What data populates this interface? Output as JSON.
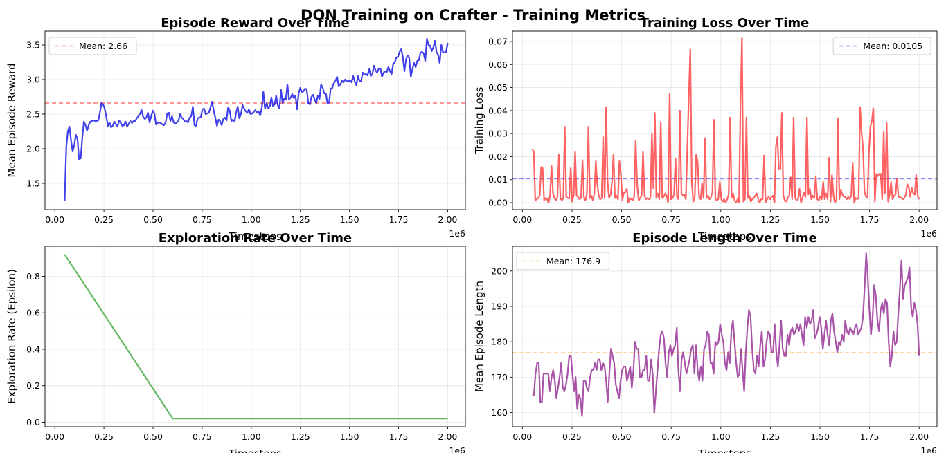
{
  "figure": {
    "suptitle": "DQN Training on Crafter - Training Metrics"
  },
  "chart_data": [
    {
      "id": "reward",
      "type": "line",
      "title": "Episode Reward Over Time",
      "xlabel": "Timesteps",
      "ylabel": "Mean Episode Reward",
      "x_multiplier_label": "1e6",
      "xlim": [
        -0.05,
        2.09
      ],
      "ylim": [
        1.12,
        3.7
      ],
      "xticks": [
        0,
        0.25,
        0.5,
        0.75,
        1.0,
        1.25,
        1.5,
        1.75,
        2.0
      ],
      "xtick_labels": [
        "0.00",
        "0.25",
        "0.50",
        "0.75",
        "1.00",
        "1.25",
        "1.50",
        "1.75",
        "2.00"
      ],
      "yticks": [
        1.5,
        2.0,
        2.5,
        3.0,
        3.5
      ],
      "ytick_labels": [
        "1.5",
        "2.0",
        "2.5",
        "3.0",
        "3.5"
      ],
      "grid": true,
      "legend_position": "top-left",
      "series": [
        {
          "color": "#0000e6",
          "x_start": 0.05,
          "x_end": 2.0,
          "values": [
            1.24,
            2.02,
            2.25,
            2.32,
            2.12,
            1.96,
            2.05,
            2.2,
            2.14,
            1.85,
            1.86,
            2.15,
            2.39,
            2.34,
            2.26,
            2.34,
            2.39,
            2.4,
            2.41,
            2.4,
            2.4,
            2.41,
            2.52,
            2.66,
            2.64,
            2.58,
            2.46,
            2.33,
            2.38,
            2.31,
            2.33,
            2.39,
            2.35,
            2.32,
            2.41,
            2.37,
            2.33,
            2.34,
            2.39,
            2.32,
            2.36,
            2.4,
            2.37,
            2.4,
            2.4,
            2.44,
            2.47,
            2.5,
            2.56,
            2.46,
            2.43,
            2.45,
            2.52,
            2.38,
            2.47,
            2.55,
            2.51,
            2.35,
            2.37,
            2.38,
            2.37,
            2.35,
            2.34,
            2.38,
            2.51,
            2.52,
            2.4,
            2.47,
            2.38,
            2.36,
            2.38,
            2.4,
            2.5,
            2.45,
            2.43,
            2.39,
            2.4,
            2.38,
            2.45,
            2.47,
            2.61,
            2.34,
            2.33,
            2.44,
            2.45,
            2.46,
            2.57,
            2.58,
            2.5,
            2.51,
            2.52,
            2.6,
            2.68,
            2.55,
            2.45,
            2.33,
            2.42,
            2.4,
            2.34,
            2.43,
            2.45,
            2.41,
            2.6,
            2.55,
            2.4,
            2.42,
            2.39,
            2.52,
            2.61,
            2.44,
            2.5,
            2.63,
            2.58,
            2.54,
            2.52,
            2.57,
            2.5,
            2.51,
            2.53,
            2.56,
            2.52,
            2.54,
            2.48,
            2.59,
            2.82,
            2.58,
            2.66,
            2.58,
            2.61,
            2.74,
            2.62,
            2.64,
            2.77,
            2.63,
            2.58,
            2.85,
            2.66,
            2.73,
            2.71,
            2.93,
            2.71,
            2.74,
            2.79,
            2.73,
            2.77,
            2.57,
            2.8,
            2.88,
            2.82,
            2.83,
            2.87,
            2.86,
            2.66,
            2.64,
            2.75,
            2.78,
            2.71,
            2.66,
            2.77,
            2.72,
            2.93,
            2.88,
            2.8,
            2.8,
            2.65,
            2.67,
            2.87,
            2.88,
            2.95,
            2.98,
            3.04,
            2.9,
            2.93,
            2.98,
            2.96,
            3.0,
            2.98,
            2.97,
            2.99,
            2.96,
            3.05,
            2.97,
            2.92,
            3.05,
            2.98,
            2.98,
            3.1,
            3.07,
            3.08,
            3.06,
            3.15,
            3.05,
            3.08,
            3.2,
            3.13,
            3.1,
            3.16,
            3.16,
            3.04,
            3.1,
            3.12,
            3.11,
            3.18,
            3.12,
            3.08,
            3.23,
            3.25,
            3.32,
            3.33,
            3.4,
            3.44,
            3.33,
            3.12,
            3.29,
            3.35,
            3.31,
            3.04,
            3.15,
            3.24,
            3.18,
            3.27,
            3.28,
            3.39,
            3.4,
            3.38,
            3.27,
            3.59,
            3.5,
            3.49,
            3.41,
            3.46,
            3.56,
            3.4,
            3.36,
            3.24,
            3.5,
            3.4,
            3.39,
            3.4,
            3.53
          ]
        }
      ],
      "reference_line": {
        "label": "Mean: 2.66",
        "value": 2.66,
        "color": "#ff3b3b",
        "style": "dashed"
      }
    },
    {
      "id": "loss",
      "type": "line",
      "title": "Training Loss Over Time",
      "xlabel": "Timesteps",
      "ylabel": "Training Loss",
      "x_multiplier_label": "1e6",
      "xlim": [
        -0.05,
        2.09
      ],
      "ylim": [
        -0.003,
        0.0745
      ],
      "xticks": [
        0,
        0.25,
        0.5,
        0.75,
        1.0,
        1.25,
        1.5,
        1.75,
        2.0
      ],
      "xtick_labels": [
        "0.00",
        "0.25",
        "0.50",
        "0.75",
        "1.00",
        "1.25",
        "1.50",
        "1.75",
        "2.00"
      ],
      "yticks": [
        0,
        0.01,
        0.02,
        0.03,
        0.04,
        0.05,
        0.06,
        0.07
      ],
      "ytick_labels": [
        "0.00",
        "0.01",
        "0.02",
        "0.03",
        "0.04",
        "0.05",
        "0.06",
        "0.07"
      ],
      "grid": true,
      "legend_position": "top-right",
      "series": [
        {
          "color": "#ff2d2d",
          "x_start": 0.05,
          "x_end": 2.0,
          "values": [
            0.0235,
            0.022,
            0.001,
            0.0015,
            0.002,
            0.003,
            0.0155,
            0.015,
            0.001,
            0.002,
            0.0015,
            0.0,
            0.003,
            0.016,
            0.004,
            0.002,
            0.001,
            0.0025,
            0.021,
            0.002,
            0.001,
            0.002,
            0.033,
            0.0025,
            0.002,
            0.0018,
            0.015,
            0.0005,
            0.003,
            0.022,
            0.003,
            0.0025,
            0.0015,
            0.002,
            0.0185,
            0.002,
            0.001,
            0.004,
            0.033,
            0.002,
            0.003,
            0.001,
            0.004,
            0.018,
            0.008,
            0.003,
            0.0015,
            0.002,
            0.0285,
            0.002,
            0.0415,
            0.009,
            0.002,
            0.0035,
            0.009,
            0.021,
            0.002,
            0.003,
            0.0015,
            0.018,
            0.012,
            0.001,
            0.0045,
            0.0045,
            0.006,
            0.0,
            0.002,
            0.0015,
            0.001,
            0.0025,
            0.027,
            0.008,
            0.001,
            0.002,
            0.003,
            0.022,
            0.003,
            0.0015,
            0.002,
            0.0015,
            0.002,
            0.03,
            0.006,
            0.039,
            0.002,
            0.004,
            0.0015,
            0.035,
            0.002,
            0.0025,
            0.004,
            0.003,
            0.0,
            0.0475,
            0.0015,
            0.002,
            0.0035,
            0.019,
            0.0025,
            0.0015,
            0.04,
            0.004,
            0.003,
            0.0035,
            0.0015,
            0.024,
            0.046,
            0.0665,
            0.009,
            0.0005,
            0.002,
            0.021,
            0.0175,
            0.0025,
            0.0015,
            0.0085,
            0.002,
            0.028,
            0.002,
            0.003,
            0.0015,
            0.0025,
            0.0045,
            0.036,
            0.0015,
            0.001,
            0.0015,
            0.009,
            0.0015,
            0.0005,
            0.0015,
            0.0,
            0.0015,
            0.0035,
            0.037,
            0.002,
            0.004,
            0.001,
            0.0,
            0.0015,
            0.0,
            0.0425,
            0.0715,
            0.0005,
            0.0015,
            0.037,
            0.002,
            0.003,
            0.0005,
            0.0015,
            0.002,
            0.003,
            0.004,
            0.0015,
            0.0,
            0.0015,
            0.0015,
            0.0205,
            0.0,
            0.0015,
            0.0025,
            0.0015,
            0.0025,
            0.003,
            0.0,
            0.0245,
            0.0285,
            0.0145,
            0.0145,
            0.039,
            0.003,
            0.001,
            0.0005,
            0.002,
            0.003,
            0.011,
            0.0015,
            0.037,
            0.002,
            0.001,
            0.0015,
            0.006,
            0.0,
            0.002,
            0.0045,
            0.0025,
            0.037,
            0.0035,
            0.006,
            0.0015,
            0.003,
            0.002,
            0.0115,
            0.0015,
            0.001,
            0.0025,
            0.0015,
            0.009,
            0.0015,
            0.004,
            0.0015,
            0.0195,
            0.0005,
            0.012,
            0.003,
            0.0,
            0.0015,
            0.0365,
            0.0015,
            0.0055,
            0.0035,
            0.0025,
            0.0025,
            0.0015,
            0.0025,
            0.0015,
            0.003,
            0.0175,
            0.0,
            0.002,
            0.0015,
            0.002,
            0.0415,
            0.0305,
            0.0235,
            0.0045,
            0.0025,
            0.002,
            0.022,
            0.033,
            0.0355,
            0.041,
            0.0005,
            0.0125,
            0.0115,
            0.0125,
            0.0125,
            0.0015,
            0.031,
            0.004,
            0.0345,
            0.0005,
            0.0035,
            0.009,
            0.0015,
            0.003,
            0.0035,
            0.0105,
            0.0025,
            0.0025,
            0.002,
            0.0015,
            0.002,
            0.0035,
            0.008,
            0.0065,
            0.0025,
            0.0065,
            0.004,
            0.0035,
            0.012,
            0.003,
            0.0015
          ]
        }
      ],
      "reference_line": {
        "label": "Mean: 0.0105",
        "value": 0.0105,
        "color": "#3b3bff",
        "style": "dashed"
      }
    },
    {
      "id": "epsilon",
      "type": "line",
      "title": "Exploration Rate Over Time",
      "xlabel": "Timesteps",
      "ylabel": "Exploration Rate (Epsilon)",
      "x_multiplier_label": "1e6",
      "xlim": [
        -0.05,
        2.09
      ],
      "ylim": [
        -0.025,
        0.965
      ],
      "xticks": [
        0,
        0.25,
        0.5,
        0.75,
        1.0,
        1.25,
        1.5,
        1.75,
        2.0
      ],
      "xtick_labels": [
        "0.00",
        "0.25",
        "0.50",
        "0.75",
        "1.00",
        "1.25",
        "1.50",
        "1.75",
        "2.00"
      ],
      "yticks": [
        0,
        0.2,
        0.4,
        0.6,
        0.8
      ],
      "ytick_labels": [
        "0.0",
        "0.2",
        "0.4",
        "0.6",
        "0.8"
      ],
      "grid": true,
      "series": [
        {
          "color": "#2ca02c",
          "points": [
            [
              0.05,
              0.92
            ],
            [
              0.6,
              0.02
            ],
            [
              2.0,
              0.02
            ]
          ]
        }
      ]
    },
    {
      "id": "length",
      "type": "line",
      "title": "Episode Length Over Time",
      "xlabel": "Timesteps",
      "ylabel": "Mean Episode Length",
      "x_multiplier_label": "1e6",
      "xlim": [
        -0.05,
        2.09
      ],
      "ylim": [
        156.0,
        207.0
      ],
      "xticks": [
        0,
        0.25,
        0.5,
        0.75,
        1.0,
        1.25,
        1.5,
        1.75,
        2.0
      ],
      "xtick_labels": [
        "0.00",
        "0.25",
        "0.50",
        "0.75",
        "1.00",
        "1.25",
        "1.50",
        "1.75",
        "2.00"
      ],
      "yticks": [
        160,
        170,
        180,
        190,
        200
      ],
      "ytick_labels": [
        "160",
        "170",
        "180",
        "190",
        "200"
      ],
      "grid": true,
      "legend_position": "top-left",
      "series": [
        {
          "color": "#8b1a8b",
          "x_start": 0.05,
          "x_end": 2.0,
          "values": [
            165,
            165,
            171,
            174,
            174,
            163,
            163,
            171,
            171,
            171,
            171,
            166,
            170,
            172,
            169,
            164,
            167,
            170,
            174,
            167,
            166,
            168,
            171,
            176,
            176,
            171,
            166,
            170,
            161,
            165,
            164,
            159,
            169,
            169,
            167,
            166,
            170,
            172,
            172,
            174,
            172,
            175,
            175,
            172,
            174,
            173,
            169,
            163,
            171,
            178,
            176,
            174,
            168,
            166,
            164,
            169,
            172,
            173,
            173,
            169,
            171,
            173,
            167,
            172,
            180,
            178,
            178,
            170,
            170,
            172,
            172,
            176,
            169,
            169,
            175,
            171,
            160,
            166,
            172,
            178,
            182,
            183,
            181,
            174,
            170,
            177,
            179,
            176,
            178,
            179,
            184,
            172,
            166,
            175,
            177,
            174,
            171,
            173,
            175,
            178,
            179,
            171,
            179,
            172,
            169,
            173,
            169,
            178,
            179,
            183,
            182,
            174,
            174,
            171,
            180,
            179,
            180,
            185,
            182,
            180,
            174,
            172,
            177,
            174,
            183,
            186,
            180,
            174,
            170,
            171,
            178,
            172,
            166,
            177,
            184,
            189,
            187,
            178,
            172,
            171,
            176,
            173,
            179,
            183,
            173,
            175,
            180,
            183,
            182,
            177,
            177,
            185,
            177,
            173,
            179,
            186,
            178,
            176,
            176,
            182,
            179,
            183,
            184,
            182,
            183,
            185,
            183,
            185,
            182,
            179,
            187,
            184,
            187,
            185,
            186,
            189,
            181,
            182,
            184,
            187,
            184,
            178,
            182,
            186,
            182,
            179,
            186,
            188,
            183,
            180,
            177,
            180,
            179,
            182,
            180,
            186,
            183,
            182,
            184,
            183,
            182,
            184,
            185,
            182,
            183,
            184,
            187,
            195,
            205,
            198,
            189,
            182,
            187,
            196,
            193,
            186,
            183,
            189,
            191,
            188,
            192,
            191,
            180,
            173,
            176,
            183,
            179,
            180,
            188,
            195,
            203,
            192,
            196,
            197,
            198,
            201,
            190,
            187,
            191,
            189,
            185,
            176
          ]
        }
      ],
      "reference_line": {
        "label": "Mean: 176.9",
        "value": 176.9,
        "color": "#ffb347",
        "style": "dashed"
      }
    }
  ]
}
